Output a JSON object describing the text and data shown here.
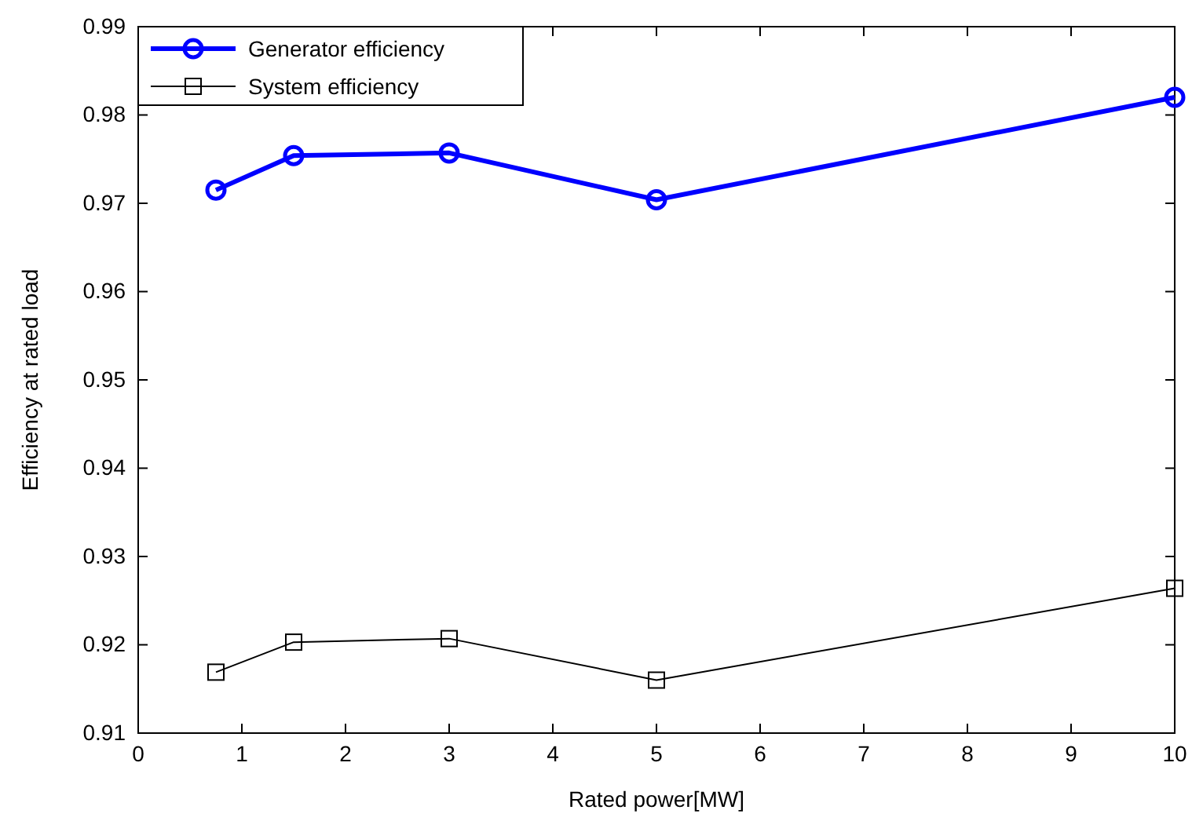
{
  "chart_data": {
    "type": "line",
    "xlabel": "Rated power[MW]",
    "ylabel": "Efficiency at rated load",
    "x": [
      0.75,
      1.5,
      3,
      5,
      10
    ],
    "series": [
      {
        "name": "Generator efficiency",
        "color": "#0000ff",
        "values": [
          0.9715,
          0.9754,
          0.9757,
          0.9704,
          0.982
        ],
        "marker": "circle",
        "line_style": "solid"
      },
      {
        "name": "System efficiency",
        "color": "#000000",
        "values": [
          0.9169,
          0.9203,
          0.9207,
          0.916,
          0.9264
        ],
        "marker": "square",
        "line_style": "solid"
      }
    ],
    "xlim": [
      0,
      10
    ],
    "xticks": [
      0,
      1,
      2,
      3,
      4,
      5,
      6,
      7,
      8,
      9,
      10
    ],
    "ylim": [
      0.91,
      0.99
    ],
    "yticks": [
      0.91,
      0.92,
      0.93,
      0.94,
      0.95,
      0.96,
      0.97,
      0.98,
      0.99
    ],
    "grid": false,
    "legend": "top left"
  }
}
